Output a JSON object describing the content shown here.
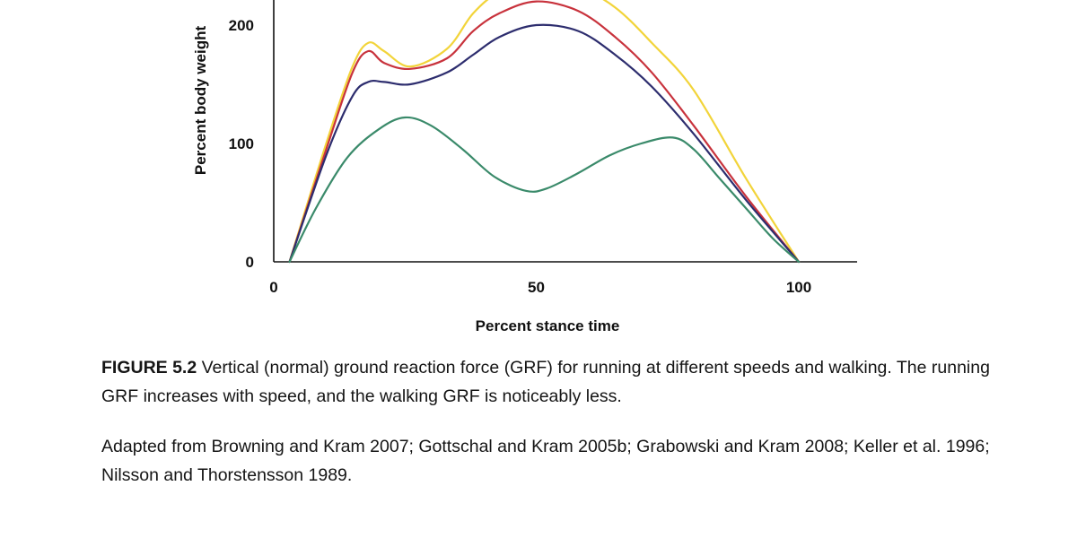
{
  "chart_data": {
    "type": "line",
    "xlabel": "Percent stance time",
    "ylabel": "Percent body weight",
    "xlim": [
      0,
      100
    ],
    "ylim": [
      0,
      200
    ],
    "x_ticks": [
      "0",
      "50",
      "100"
    ],
    "y_ticks": [
      "0",
      "100",
      "200"
    ],
    "grid": false,
    "legend": "none",
    "series": [
      {
        "color": "#f2d43a",
        "x": [
          3,
          10,
          15,
          18,
          21,
          26,
          33,
          38,
          43,
          50,
          58,
          65,
          72,
          80,
          90,
          100
        ],
        "y": [
          0,
          100,
          165,
          185,
          178,
          165,
          180,
          210,
          228,
          238,
          232,
          215,
          185,
          145,
          70,
          0
        ]
      },
      {
        "color": "#c8323c",
        "x": [
          3,
          10,
          15,
          18,
          21,
          26,
          33,
          38,
          43,
          50,
          58,
          65,
          72,
          80,
          90,
          100
        ],
        "y": [
          0,
          95,
          160,
          178,
          168,
          163,
          172,
          195,
          210,
          220,
          212,
          190,
          160,
          115,
          55,
          0
        ]
      },
      {
        "color": "#2d2d6e",
        "x": [
          3,
          10,
          15,
          18,
          21,
          26,
          33,
          38,
          43,
          50,
          58,
          65,
          72,
          80,
          90,
          100
        ],
        "y": [
          0,
          90,
          140,
          152,
          152,
          150,
          160,
          175,
          190,
          200,
          195,
          175,
          148,
          108,
          52,
          0
        ]
      },
      {
        "color": "#3a8a6a",
        "x": [
          3,
          8,
          14,
          20,
          25,
          30,
          36,
          42,
          48,
          52,
          58,
          64,
          70,
          76,
          80,
          85,
          90,
          95,
          100
        ],
        "y": [
          0,
          45,
          88,
          112,
          122,
          115,
          95,
          72,
          60,
          62,
          75,
          90,
          100,
          105,
          95,
          70,
          45,
          20,
          0
        ]
      }
    ]
  },
  "caption": {
    "label": "FIGURE 5.2",
    "text": " Vertical (normal) ground reaction force (GRF) for running at different speeds and walking. The running GRF increases with speed, and the walking GRF is noticeably less."
  },
  "credit": "Adapted from Browning and Kram 2007; Gottschal and Kram 2005b; Grabowski and Kram 2008; Keller et al. 1996; Nilsson and Thorstensson 1989."
}
